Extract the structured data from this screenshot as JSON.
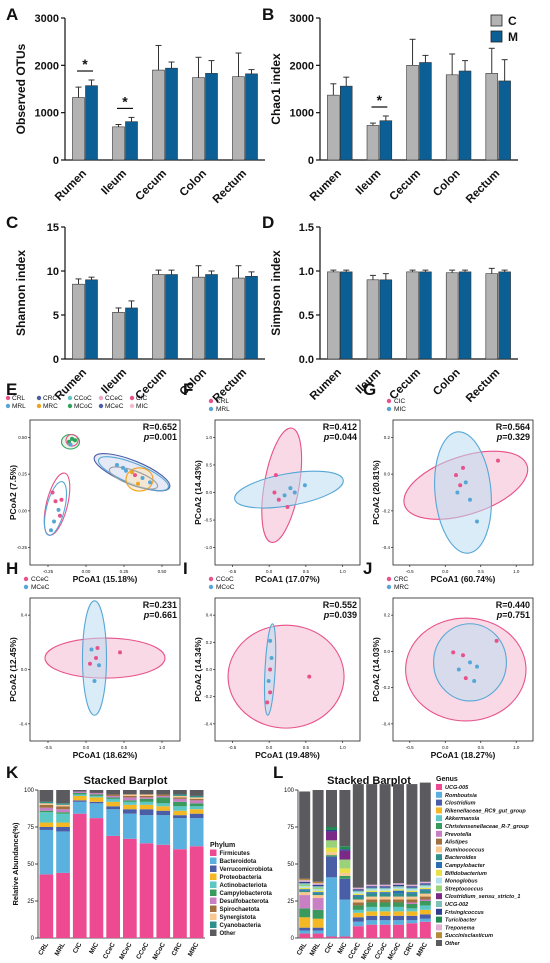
{
  "colors": {
    "C": "#b3b3b3",
    "M": "#0b5f95",
    "pink": "#e8528a",
    "blue": "#56a7d6",
    "ellPink": "#f3b9cf",
    "ellBlue": "#bcdcf0"
  },
  "legend_top": {
    "C": "C",
    "M": "M"
  },
  "regions": [
    "Rumen",
    "Ileum",
    "Cecum",
    "Colon",
    "Rectum"
  ],
  "chart_data": [
    {
      "panel": "A",
      "type": "bar",
      "ylabel": "Observed OTUs",
      "ylim": [
        0,
        3000
      ],
      "ticks": [
        0,
        1000,
        2000,
        3000
      ],
      "categories": [
        "Rumen",
        "Ileum",
        "Cecum",
        "Colon",
        "Rectum"
      ],
      "series": [
        {
          "name": "C",
          "values": [
            1320,
            700,
            1900,
            1740,
            1760
          ],
          "err": [
            220,
            50,
            520,
            430,
            500
          ]
        },
        {
          "name": "M",
          "values": [
            1570,
            810,
            1940,
            1830,
            1820
          ],
          "err": [
            120,
            90,
            130,
            270,
            90
          ]
        }
      ],
      "sig": [
        {
          "cat": 0,
          "label": "*"
        },
        {
          "cat": 1,
          "label": "*"
        }
      ]
    },
    {
      "panel": "B",
      "type": "bar",
      "ylabel": "Chao1 index",
      "ylim": [
        0,
        3000
      ],
      "ticks": [
        0,
        1000,
        2000,
        3000
      ],
      "categories": [
        "Rumen",
        "Ileum",
        "Cecum",
        "Colon",
        "Rectum"
      ],
      "series": [
        {
          "name": "C",
          "values": [
            1370,
            730,
            2000,
            1800,
            1830
          ],
          "err": [
            240,
            50,
            550,
            440,
            530
          ]
        },
        {
          "name": "M",
          "values": [
            1560,
            830,
            2060,
            1880,
            1670
          ],
          "err": [
            190,
            100,
            150,
            220,
            450
          ]
        }
      ],
      "sig": [
        {
          "cat": 1,
          "label": "*"
        }
      ]
    },
    {
      "panel": "C",
      "type": "bar",
      "ylabel": "Shannon index",
      "ylim": [
        0,
        15
      ],
      "ticks": [
        0,
        5,
        10,
        15
      ],
      "categories": [
        "Rumen",
        "Ileum",
        "Cecum",
        "Colon",
        "Rectum"
      ],
      "series": [
        {
          "name": "C",
          "values": [
            8.5,
            5.3,
            9.6,
            9.3,
            9.2
          ],
          "err": [
            0.6,
            0.5,
            0.5,
            1.3,
            1.4
          ]
        },
        {
          "name": "M",
          "values": [
            9.0,
            5.8,
            9.6,
            9.6,
            9.4
          ],
          "err": [
            0.3,
            0.8,
            0.5,
            0.4,
            0.5
          ]
        }
      ],
      "sig": []
    },
    {
      "panel": "D",
      "type": "bar",
      "ylabel": "Simpson index",
      "ylim": [
        0,
        1.5
      ],
      "ticks": [
        0,
        0.5,
        1.0,
        1.5
      ],
      "categories": [
        "Rumen",
        "Ileum",
        "Cecum",
        "Colon",
        "Rectum"
      ],
      "series": [
        {
          "name": "C",
          "values": [
            0.99,
            0.9,
            0.99,
            0.98,
            0.97
          ],
          "err": [
            0.02,
            0.05,
            0.02,
            0.03,
            0.06
          ]
        },
        {
          "name": "M",
          "values": [
            0.99,
            0.9,
            0.99,
            0.99,
            0.99
          ],
          "err": [
            0.02,
            0.07,
            0.02,
            0.02,
            0.02
          ]
        }
      ],
      "sig": []
    },
    {
      "panel": "E",
      "type": "scatter",
      "xlabel": "PCoA1 (15.18%)",
      "ylabel": "PCoA2 (7.5%)",
      "xticks": [
        "-0.25",
        "0.00",
        "0.25",
        "0.50"
      ],
      "yticks": [
        "0.50",
        "0.25",
        "0.00",
        "-0.25"
      ],
      "R": "R=0.652",
      "p": "=0.001",
      "legend": [
        "CRL",
        "CRC",
        "CCoC",
        "CCeC",
        "CIC",
        "MRL",
        "MRC",
        "MCoC",
        "MCeC",
        "MIC"
      ]
    },
    {
      "panel": "F",
      "type": "scatter",
      "xlabel": "PCoA1 (17.07%)",
      "ylabel": "PCoA2 (14.43%)",
      "xticks": [
        "-0.5",
        "0.0",
        "0.5",
        "1.0"
      ],
      "yticks": [
        "1.0",
        "0.5",
        "0.0",
        "-0.5",
        "-1.0"
      ],
      "R": "R=0.412",
      "p": "=0.044",
      "legend": [
        "CRL",
        "MRL"
      ]
    },
    {
      "panel": "G",
      "type": "scatter",
      "xlabel": "PCoA1 (60.74%)",
      "ylabel": "PCoA2 (20.81%)",
      "xticks": [
        "-0.5",
        "0.0",
        "0.5",
        "1.0"
      ],
      "yticks": [
        "0.2",
        "0.0",
        "-0.2",
        "-0.4"
      ],
      "R": "R=0.564",
      "p": "=0.329",
      "legend": [
        "CIC",
        "MIC"
      ]
    },
    {
      "panel": "H",
      "type": "scatter",
      "xlabel": "PCoA1 (18.62%)",
      "ylabel": "PCoA2 (12.45%)",
      "xticks": [
        "-0.5",
        "0.0",
        "0.5",
        "1.0"
      ],
      "yticks": [
        "0.4",
        "0.0",
        "-0.4"
      ],
      "R": "R=0.231",
      "p": "=0.661",
      "legend": [
        "CCeC",
        "MCeC"
      ]
    },
    {
      "panel": "I",
      "type": "scatter",
      "xlabel": "PCoA1 (19.48%)",
      "ylabel": "PCoA2 (14.34%)",
      "xticks": [
        "-0.5",
        "0.0",
        "0.5",
        "1.0"
      ],
      "yticks": [
        "0.4",
        "0.2",
        "0.0",
        "-0.2",
        "-0.4"
      ],
      "R": "R=0.552",
      "p": "=0.039",
      "legend": [
        "CCoC",
        "MCoC"
      ]
    },
    {
      "panel": "J",
      "type": "scatter",
      "xlabel": "PCoA1 (18.27%)",
      "ylabel": "PCoA2 (14.03%)",
      "xticks": [
        "-0.5",
        "0.0",
        "0.5",
        "1.0"
      ],
      "yticks": [
        "0.2",
        "0.0",
        "-0.2",
        "-0.4"
      ],
      "R": "R=0.440",
      "p": "=0.751",
      "legend": [
        "CRC",
        "MRC"
      ]
    },
    {
      "panel": "K",
      "type": "bar",
      "stacked": true,
      "title": "Stacked Barplot",
      "ylabel": "Relative Abundance(%)",
      "ylim": [
        0,
        100
      ],
      "ticks": [
        0,
        25,
        50,
        75,
        100
      ],
      "categories": [
        "CRL",
        "MRL",
        "CIC",
        "MIC",
        "CCeC",
        "MCeC",
        "CCoC",
        "MCoC",
        "CRC",
        "MRC"
      ],
      "legend_title": "Phylum",
      "series": [
        {
          "name": "Firmicutes",
          "color": "#ee4a91",
          "values": [
            43,
            44,
            84,
            81,
            69,
            67,
            64,
            63,
            60,
            62
          ]
        },
        {
          "name": "Bacteroidota",
          "color": "#5ab0de",
          "values": [
            30,
            28,
            8,
            10,
            18,
            17,
            19,
            20,
            21,
            19
          ]
        },
        {
          "name": "Verrucomicrobiota",
          "color": "#4a5ea8",
          "values": [
            2,
            3,
            1,
            1,
            2,
            3,
            4,
            3,
            2,
            3
          ]
        },
        {
          "name": "Proteobacteria",
          "color": "#f3b823",
          "values": [
            3,
            3,
            3,
            3,
            3,
            3,
            3,
            3,
            3,
            3
          ]
        },
        {
          "name": "Actinobacteriota",
          "color": "#5cc7c5",
          "values": [
            7,
            6,
            1,
            1,
            2,
            2,
            2,
            2,
            3,
            2
          ]
        },
        {
          "name": "Campylobacterota",
          "color": "#3a9a5d",
          "values": [
            1,
            1,
            1,
            1,
            1,
            1,
            2,
            4,
            3,
            2
          ]
        },
        {
          "name": "Desulfobacterota",
          "color": "#c97fc4",
          "values": [
            2,
            2,
            1,
            1,
            1,
            2,
            1,
            1,
            2,
            2
          ]
        },
        {
          "name": "Spirochaetota",
          "color": "#a07040",
          "values": [
            2,
            2,
            0,
            0,
            1,
            1,
            1,
            1,
            1,
            1
          ]
        },
        {
          "name": "Synergistota",
          "color": "#f8c890",
          "values": [
            1,
            1,
            0,
            0,
            0,
            1,
            1,
            0,
            1,
            1
          ]
        },
        {
          "name": "Cyanobacteria",
          "color": "#2f8f8a",
          "values": [
            1,
            1,
            0,
            0,
            0,
            0,
            0,
            0,
            1,
            1
          ]
        },
        {
          "name": "Other",
          "color": "#5b5b5f",
          "values": [
            8,
            9,
            1,
            2,
            3,
            3,
            3,
            3,
            3,
            4
          ]
        }
      ]
    },
    {
      "panel": "L",
      "type": "bar",
      "stacked": true,
      "title": "Stacked Barplot",
      "ylim": [
        0,
        100
      ],
      "ticks": [
        0,
        25,
        50,
        75,
        100
      ],
      "categories": [
        "CRL",
        "MRL",
        "CIC",
        "MIC",
        "CCeC",
        "MCeC",
        "CCoC",
        "MCoC",
        "CRC",
        "MRC"
      ],
      "legend_title": "Genus",
      "series": [
        {
          "name": "UCG-005",
          "color": "#ee4a91",
          "values": [
            3,
            3,
            1,
            1,
            8,
            9,
            9,
            9,
            10,
            11
          ]
        },
        {
          "name": "Romboutsia",
          "color": "#5ab0de",
          "values": [
            2,
            2,
            40,
            25,
            3,
            3,
            3,
            3,
            2,
            2
          ]
        },
        {
          "name": "Clostridium",
          "color": "#4a5ea8",
          "values": [
            2,
            2,
            14,
            14,
            3,
            3,
            3,
            3,
            3,
            3
          ]
        },
        {
          "name": "Rikenellaceae_RC9_gut_group",
          "color": "#f3b823",
          "values": [
            7,
            6,
            0,
            0,
            3,
            3,
            3,
            3,
            3,
            3
          ]
        },
        {
          "name": "Akkermansia",
          "color": "#5cc7c5",
          "values": [
            0,
            0,
            0,
            0,
            2,
            3,
            3,
            3,
            2,
            3
          ]
        },
        {
          "name": "Christensenellaceae_R-7_group",
          "color": "#3a9a5d",
          "values": [
            6,
            6,
            1,
            2,
            3,
            3,
            3,
            3,
            3,
            3
          ]
        },
        {
          "name": "Prevotella",
          "color": "#c97fc4",
          "values": [
            9,
            8,
            0,
            0,
            0,
            0,
            0,
            0,
            1,
            1
          ]
        },
        {
          "name": "Alistipes",
          "color": "#a07040",
          "values": [
            0,
            0,
            0,
            0,
            2,
            2,
            2,
            2,
            2,
            2
          ]
        },
        {
          "name": "Ruminococcus",
          "color": "#f8c890",
          "values": [
            2,
            2,
            2,
            2,
            2,
            2,
            2,
            2,
            2,
            2
          ]
        },
        {
          "name": "Bacteroides",
          "color": "#2f8f8a",
          "values": [
            1,
            1,
            0,
            0,
            2,
            2,
            2,
            2,
            2,
            2
          ]
        },
        {
          "name": "Campylobacter",
          "color": "#2a6eb5",
          "values": [
            1,
            1,
            0,
            0,
            1,
            1,
            1,
            2,
            1,
            1
          ]
        },
        {
          "name": "Bifidobacterium",
          "color": "#e8e048",
          "values": [
            1,
            1,
            3,
            3,
            1,
            1,
            1,
            1,
            1,
            1
          ]
        },
        {
          "name": "Monoglobus",
          "color": "#b0e2ee",
          "values": [
            1,
            1,
            0,
            0,
            1,
            1,
            1,
            1,
            1,
            1
          ]
        },
        {
          "name": "Streptococcus",
          "color": "#9ad27a",
          "values": [
            1,
            1,
            5,
            6,
            0,
            0,
            0,
            0,
            0,
            0
          ]
        },
        {
          "name": "Clostridium_sensu_stricto_1",
          "color": "#7a2a86",
          "values": [
            0,
            0,
            6,
            6,
            0,
            0,
            0,
            0,
            0,
            0
          ]
        },
        {
          "name": "UCG-002",
          "color": "#7cc2b8",
          "values": [
            1,
            1,
            0,
            0,
            1,
            1,
            1,
            1,
            1,
            1
          ]
        },
        {
          "name": "Frisingicoccus",
          "color": "#2e3f91",
          "values": [
            1,
            1,
            1,
            1,
            1,
            1,
            1,
            1,
            1,
            1
          ]
        },
        {
          "name": "Turicibacter",
          "color": "#1f8a52",
          "values": [
            0,
            0,
            2,
            2,
            0,
            0,
            0,
            0,
            0,
            0
          ]
        },
        {
          "name": "Treponema",
          "color": "#e3b0d4",
          "values": [
            1,
            1,
            0,
            0,
            1,
            1,
            1,
            1,
            1,
            1
          ]
        },
        {
          "name": "Succinisclasticum",
          "color": "#b58a3a",
          "values": [
            1,
            1,
            0,
            0,
            0,
            0,
            0,
            0,
            0,
            0
          ]
        },
        {
          "name": "Other",
          "color": "#5b5b5f",
          "values": [
            59,
            62,
            25,
            38,
            70,
            68,
            68,
            67,
            68,
            67
          ]
        }
      ]
    }
  ]
}
